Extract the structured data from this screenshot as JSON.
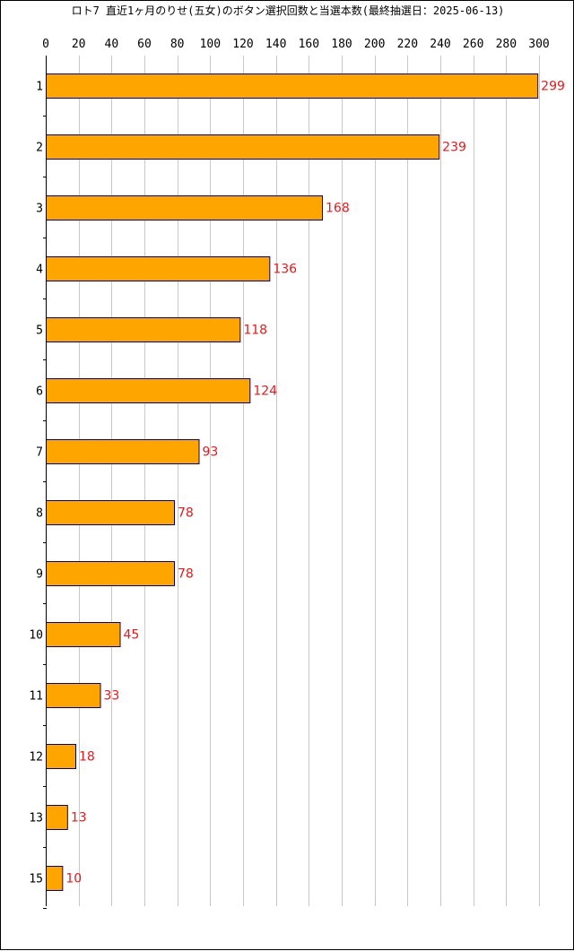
{
  "chart_data": {
    "type": "bar",
    "orientation": "horizontal",
    "title": "ロト7 直近1ヶ月のりせ(五女)のボタン選択回数と当選本数(最終抽選日：2025-06-13)",
    "categories": [
      "1",
      "2",
      "3",
      "4",
      "5",
      "6",
      "7",
      "8",
      "9",
      "10",
      "11",
      "12",
      "13",
      "15"
    ],
    "values": [
      299,
      239,
      168,
      136,
      118,
      124,
      93,
      78,
      78,
      45,
      33,
      18,
      13,
      10
    ],
    "xlim": [
      0,
      300
    ],
    "xticks": [
      0,
      20,
      40,
      60,
      80,
      100,
      120,
      140,
      160,
      180,
      200,
      220,
      240,
      260,
      280,
      300
    ],
    "x_axis_position": "top",
    "grid": true,
    "bar_color": "#FFA500",
    "bar_edge_color": "#000080",
    "label_color": "#E31A1C",
    "grid_color": "#C8C8C8"
  }
}
